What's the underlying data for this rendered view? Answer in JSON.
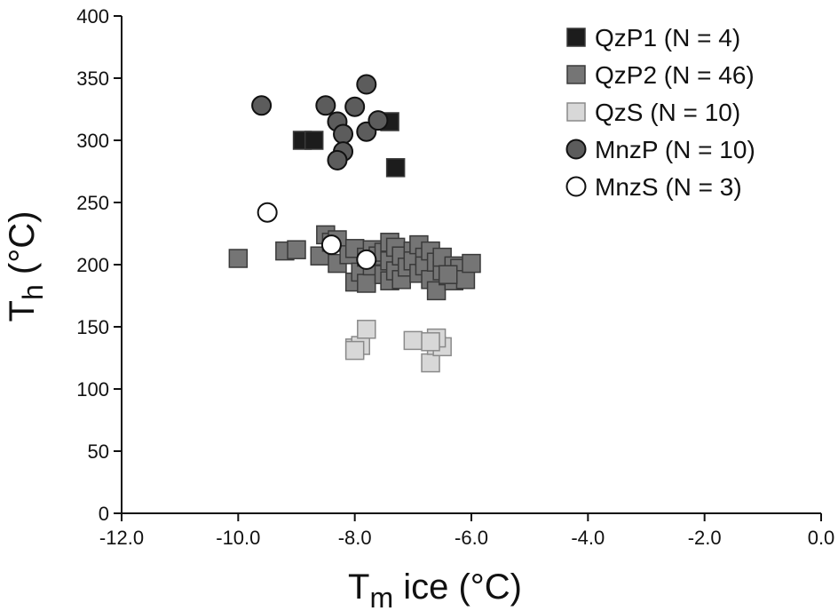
{
  "chart_data": {
    "type": "scatter",
    "xlabel": {
      "main": "T",
      "sub": "m",
      "rest": " ice (°C)"
    },
    "ylabel": {
      "main": "T",
      "sub": "h",
      "rest": " (°C)"
    },
    "xlim": [
      -12.0,
      0.0
    ],
    "ylim": [
      0,
      400
    ],
    "x_ticks": [
      -12.0,
      -10.0,
      -8.0,
      -6.0,
      -4.0,
      -2.0,
      0.0
    ],
    "x_tick_labels": [
      "-12.0",
      "-10.0",
      "-8.0",
      "-6.0",
      "-4.0",
      "-2.0",
      "0.0"
    ],
    "y_ticks": [
      0,
      50,
      100,
      150,
      200,
      250,
      300,
      350,
      400
    ],
    "y_tick_labels": [
      "0",
      "50",
      "100",
      "150",
      "200",
      "250",
      "300",
      "350",
      "400"
    ],
    "grid": false,
    "legend_position": "top-right",
    "series": [
      {
        "name": "QzP1 (N = 4)",
        "marker": "square",
        "color": "#1c1c1c",
        "points": [
          [
            -8.9,
            300
          ],
          [
            -8.7,
            300
          ],
          [
            -7.4,
            315
          ],
          [
            -7.3,
            278
          ]
        ]
      },
      {
        "name": "QzP2 (N = 46)",
        "marker": "square",
        "color": "#757575",
        "points": [
          [
            -10.0,
            205
          ],
          [
            -9.2,
            211
          ],
          [
            -9.0,
            212
          ],
          [
            -8.6,
            207
          ],
          [
            -8.5,
            224
          ],
          [
            -8.4,
            218
          ],
          [
            -8.3,
            201
          ],
          [
            -8.3,
            220
          ],
          [
            -8.1,
            208
          ],
          [
            -8.0,
            186
          ],
          [
            -8.0,
            213
          ],
          [
            -7.9,
            194
          ],
          [
            -7.8,
            206
          ],
          [
            -7.8,
            185
          ],
          [
            -7.7,
            199
          ],
          [
            -7.7,
            212
          ],
          [
            -7.6,
            207
          ],
          [
            -7.5,
            192
          ],
          [
            -7.5,
            210
          ],
          [
            -7.4,
            187
          ],
          [
            -7.4,
            218
          ],
          [
            -7.4,
            203
          ],
          [
            -7.3,
            195
          ],
          [
            -7.3,
            214
          ],
          [
            -7.2,
            207
          ],
          [
            -7.2,
            188
          ],
          [
            -7.1,
            198
          ],
          [
            -7.0,
            211
          ],
          [
            -7.0,
            203
          ],
          [
            -6.9,
            216
          ],
          [
            -6.9,
            193
          ],
          [
            -6.8,
            206
          ],
          [
            -6.8,
            199
          ],
          [
            -6.7,
            211
          ],
          [
            -6.7,
            188
          ],
          [
            -6.6,
            202
          ],
          [
            -6.6,
            179
          ],
          [
            -6.5,
            195
          ],
          [
            -6.5,
            206
          ],
          [
            -6.4,
            191
          ],
          [
            -6.3,
            199
          ],
          [
            -6.3,
            187
          ],
          [
            -6.2,
            197
          ],
          [
            -6.1,
            188
          ],
          [
            -6.0,
            201
          ],
          [
            -6.4,
            192
          ]
        ]
      },
      {
        "name": "QzS (N = 10)",
        "marker": "square",
        "color": "#d8d8d8",
        "points": [
          [
            -8.0,
            133
          ],
          [
            -7.9,
            135
          ],
          [
            -7.8,
            148
          ],
          [
            -7.0,
            139
          ],
          [
            -6.7,
            121
          ],
          [
            -6.6,
            135
          ],
          [
            -6.5,
            134
          ],
          [
            -6.6,
            141
          ],
          [
            -8.0,
            131
          ],
          [
            -6.7,
            138
          ]
        ]
      },
      {
        "name": "MnzP (N = 10)",
        "marker": "circle",
        "color": "#5c5c5c",
        "points": [
          [
            -9.6,
            328
          ],
          [
            -8.5,
            328
          ],
          [
            -8.3,
            315
          ],
          [
            -8.2,
            305
          ],
          [
            -8.2,
            291
          ],
          [
            -8.3,
            284
          ],
          [
            -8.0,
            327
          ],
          [
            -7.8,
            307
          ],
          [
            -7.8,
            345
          ],
          [
            -7.6,
            316
          ]
        ]
      },
      {
        "name": "MnzS (N = 3)",
        "marker": "circle",
        "color": "#ffffff",
        "points": [
          [
            -9.5,
            242
          ],
          [
            -8.4,
            216
          ],
          [
            -7.8,
            204
          ]
        ]
      }
    ]
  }
}
